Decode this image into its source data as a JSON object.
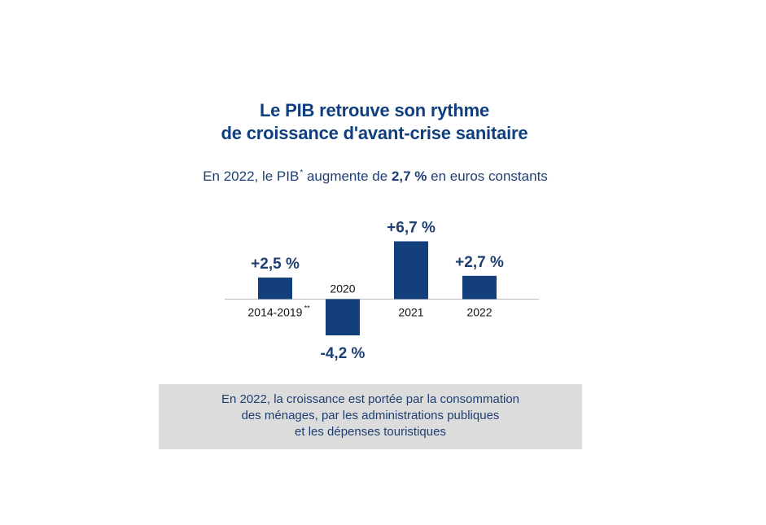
{
  "header": {
    "title_line1": "Le PIB retrouve son rythme",
    "title_line2": "de croissance d'avant-crise sanitaire",
    "subtitle_prefix": "En 2022, le PIB",
    "subtitle_mark": "*",
    "subtitle_middle": " augmente de ",
    "subtitle_value": "2,7 %",
    "subtitle_suffix": " en euros constants"
  },
  "chart_data": {
    "type": "bar",
    "categories": [
      "2014-2019",
      "2020",
      "2021",
      "2022"
    ],
    "category_marks": [
      "**",
      "",
      "",
      ""
    ],
    "values": [
      2.5,
      -4.2,
      6.7,
      2.7
    ],
    "value_labels": [
      "+2,5 %",
      "-4,2 %",
      "+6,7 %",
      "+2,7 %"
    ],
    "title": "Le PIB retrouve son rythme de croissance d'avant-crise sanitaire",
    "xlabel": "",
    "ylabel": "",
    "ylim": [
      -4.2,
      6.7
    ],
    "grid": false,
    "bar_color": "#133f7d",
    "text_color": "#1e3f73"
  },
  "note": {
    "line1": "En 2022, la croissance est portée par la consommation",
    "line2": "des ménages, par les administrations publiques",
    "line3": "et les dépenses touristiques"
  }
}
